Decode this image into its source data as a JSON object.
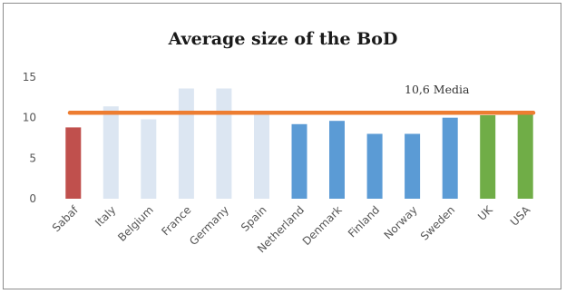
{
  "chart_data": {
    "type": "bar",
    "title": "Average size of the BoD",
    "xlabel": "",
    "ylabel": "",
    "ylim": [
      0,
      15
    ],
    "yticks": [
      0,
      5,
      10,
      15
    ],
    "grid": false,
    "categories": [
      "Sabaf",
      "Italy",
      "Belgium",
      "France",
      "Germany",
      "Spain",
      "Netherland",
      "Denmark",
      "Finland",
      "Norway",
      "Sweden",
      "UK",
      "USA"
    ],
    "values": [
      8.8,
      11.4,
      9.8,
      13.6,
      13.6,
      10.7,
      9.2,
      9.6,
      8.0,
      8.0,
      10.0,
      10.3,
      10.5
    ],
    "colors": [
      "#c0504d",
      "#dce6f2",
      "#dce6f2",
      "#dce6f2",
      "#dce6f2",
      "#dce6f2",
      "#5b9bd5",
      "#5b9bd5",
      "#5b9bd5",
      "#5b9bd5",
      "#5b9bd5",
      "#70ad47",
      "#70ad47"
    ],
    "reference_line": {
      "value": 10.6,
      "label": "10,6  Media",
      "color": "#ed7d31"
    }
  }
}
